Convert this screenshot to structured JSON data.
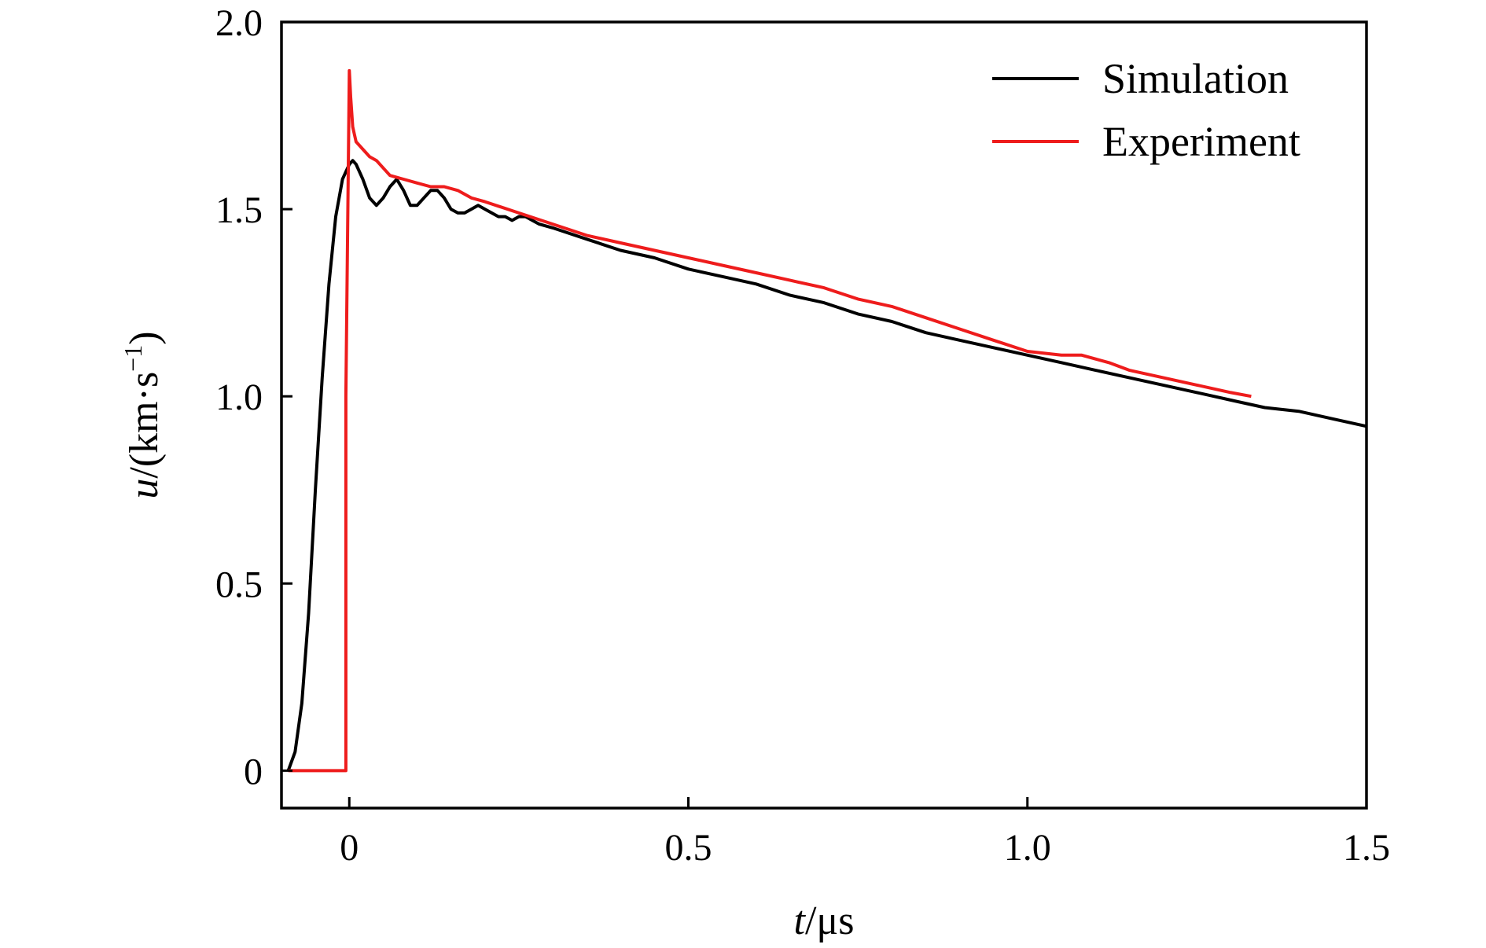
{
  "chart_data": {
    "type": "line",
    "title": "",
    "xlabel": {
      "var": "t",
      "unit": "/μs"
    },
    "ylabel": {
      "var": "u",
      "unit_prefix": "/(km·s",
      "unit_sup": "−1",
      "unit_suffix": ")"
    },
    "xlim": [
      -0.1,
      1.5
    ],
    "ylim": [
      -0.1,
      2.0
    ],
    "x_ticks": [
      0,
      0.5,
      1.0,
      1.5
    ],
    "x_tick_labels": [
      "0",
      "0.5",
      "1.0",
      "1.5"
    ],
    "y_ticks": [
      0,
      0.5,
      1.0,
      1.5,
      2.0
    ],
    "y_tick_labels": [
      "0",
      "0.5",
      "1.0",
      "1.5",
      "2.0"
    ],
    "grid": false,
    "legend_position": "top-right",
    "series": [
      {
        "name": "Simulation",
        "color": "#000000",
        "x": [
          -0.09,
          -0.08,
          -0.07,
          -0.06,
          -0.05,
          -0.04,
          -0.03,
          -0.02,
          -0.01,
          0.0,
          0.005,
          0.01,
          0.02,
          0.03,
          0.04,
          0.05,
          0.06,
          0.07,
          0.08,
          0.09,
          0.1,
          0.11,
          0.12,
          0.13,
          0.14,
          0.15,
          0.16,
          0.17,
          0.18,
          0.19,
          0.2,
          0.21,
          0.22,
          0.23,
          0.24,
          0.25,
          0.26,
          0.27,
          0.28,
          0.3,
          0.35,
          0.4,
          0.45,
          0.5,
          0.55,
          0.6,
          0.65,
          0.7,
          0.75,
          0.8,
          0.85,
          0.9,
          0.95,
          1.0,
          1.05,
          1.1,
          1.15,
          1.2,
          1.25,
          1.3,
          1.35,
          1.4,
          1.45,
          1.5
        ],
        "y": [
          0.0,
          0.05,
          0.18,
          0.42,
          0.75,
          1.05,
          1.3,
          1.48,
          1.58,
          1.62,
          1.63,
          1.62,
          1.58,
          1.53,
          1.51,
          1.53,
          1.56,
          1.58,
          1.55,
          1.51,
          1.51,
          1.53,
          1.55,
          1.55,
          1.53,
          1.5,
          1.49,
          1.49,
          1.5,
          1.51,
          1.5,
          1.49,
          1.48,
          1.48,
          1.47,
          1.48,
          1.48,
          1.47,
          1.46,
          1.45,
          1.42,
          1.39,
          1.37,
          1.34,
          1.32,
          1.3,
          1.27,
          1.25,
          1.22,
          1.2,
          1.17,
          1.15,
          1.13,
          1.11,
          1.09,
          1.07,
          1.05,
          1.03,
          1.01,
          0.99,
          0.97,
          0.96,
          0.94,
          0.92
        ]
      },
      {
        "name": "Experiment",
        "color": "#ee1c1c",
        "x": [
          -0.09,
          -0.005,
          -0.005,
          0.0,
          0.002,
          0.005,
          0.01,
          0.02,
          0.03,
          0.04,
          0.05,
          0.06,
          0.08,
          0.1,
          0.12,
          0.14,
          0.16,
          0.18,
          0.2,
          0.25,
          0.3,
          0.35,
          0.4,
          0.45,
          0.5,
          0.55,
          0.6,
          0.65,
          0.7,
          0.75,
          0.8,
          0.85,
          0.9,
          0.95,
          1.0,
          1.05,
          1.08,
          1.1,
          1.12,
          1.15,
          1.2,
          1.25,
          1.3,
          1.33
        ],
        "y": [
          0.0,
          0.0,
          1.0,
          1.87,
          1.8,
          1.72,
          1.68,
          1.66,
          1.64,
          1.63,
          1.61,
          1.59,
          1.58,
          1.57,
          1.56,
          1.56,
          1.55,
          1.53,
          1.52,
          1.49,
          1.46,
          1.43,
          1.41,
          1.39,
          1.37,
          1.35,
          1.33,
          1.31,
          1.29,
          1.26,
          1.24,
          1.21,
          1.18,
          1.15,
          1.12,
          1.11,
          1.11,
          1.1,
          1.09,
          1.07,
          1.05,
          1.03,
          1.01,
          1.0
        ]
      }
    ]
  }
}
